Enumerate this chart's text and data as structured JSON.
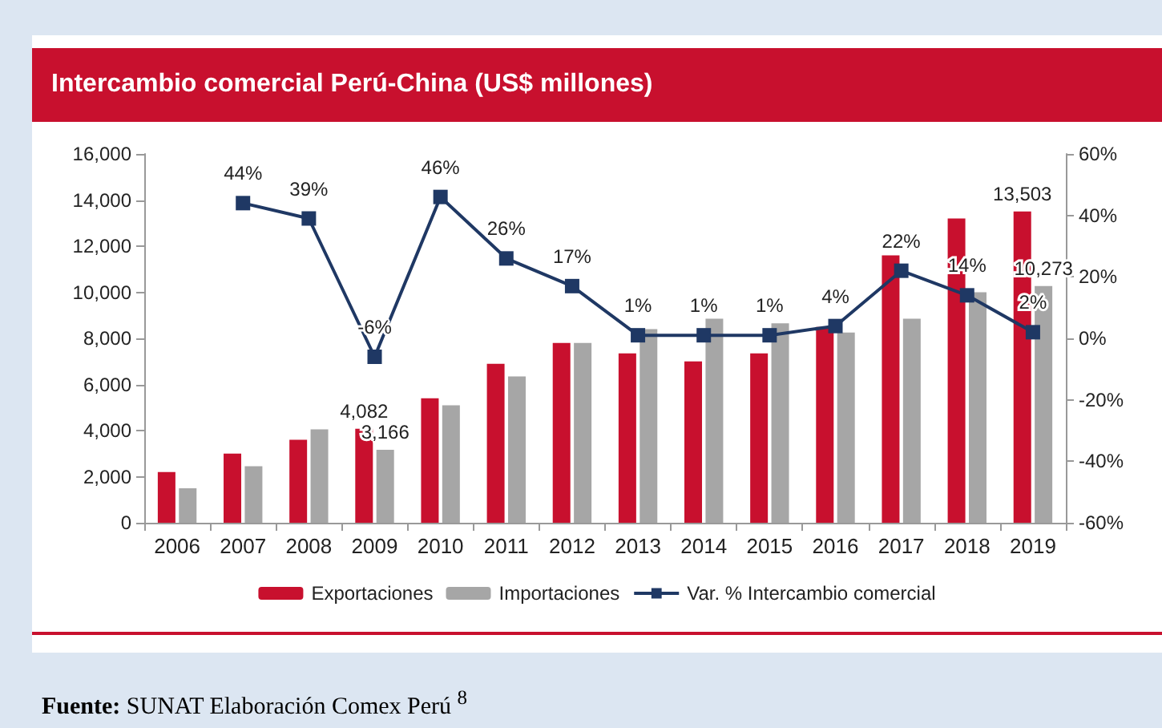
{
  "chart_data": {
    "type": "bar",
    "title": "Intercambio comercial Perú-China (US$ millones)",
    "categories": [
      "2006",
      "2007",
      "2008",
      "2009",
      "2010",
      "2011",
      "2012",
      "2013",
      "2014",
      "2015",
      "2016",
      "2017",
      "2018",
      "2019"
    ],
    "series": [
      {
        "name": "Exportaciones",
        "color": "#c8102e",
        "values": [
          2200,
          3000,
          3600,
          4082,
          5400,
          6900,
          7800,
          7350,
          7000,
          7350,
          8500,
          11600,
          13200,
          13503
        ],
        "value_labels": [
          null,
          null,
          null,
          "4,082",
          null,
          null,
          null,
          null,
          null,
          null,
          null,
          null,
          null,
          "13,503"
        ]
      },
      {
        "name": "Importaciones",
        "color": "#a6a6a6",
        "values": [
          1500,
          2450,
          4050,
          3166,
          5100,
          6350,
          7800,
          8400,
          8850,
          8650,
          8250,
          8850,
          10000,
          10273
        ],
        "value_labels": [
          null,
          null,
          null,
          "3,166",
          null,
          null,
          null,
          null,
          null,
          null,
          null,
          null,
          null,
          "10,273"
        ]
      },
      {
        "name": "Var. % Intercambio comercial",
        "type": "line",
        "axis": "y2",
        "color": "#1f3864",
        "marker": "square",
        "values": [
          null,
          44,
          39,
          -6,
          46,
          26,
          17,
          1,
          1,
          1,
          4,
          22,
          14,
          2
        ],
        "value_labels": [
          null,
          "44%",
          "39%",
          "-6%",
          "46%",
          "26%",
          "17%",
          "1%",
          "1%",
          "1%",
          "4%",
          "22%",
          "14%",
          "2%"
        ]
      }
    ],
    "ylim": [
      0,
      16000
    ],
    "yticks": [
      {
        "value": 0,
        "label": "0"
      },
      {
        "value": 2000,
        "label": "2,000"
      },
      {
        "value": 4000,
        "label": "4,000"
      },
      {
        "value": 6000,
        "label": "6,000"
      },
      {
        "value": 8000,
        "label": "8,000"
      },
      {
        "value": 10000,
        "label": "10,000"
      },
      {
        "value": 12000,
        "label": "12,000"
      },
      {
        "value": 14000,
        "label": "14,000"
      },
      {
        "value": 16000,
        "label": "16,000"
      }
    ],
    "y2lim": [
      -60,
      60
    ],
    "y2ticks": [
      {
        "value": -60,
        "label": "-60%"
      },
      {
        "value": -40,
        "label": "-40%"
      },
      {
        "value": -20,
        "label": "-20%"
      },
      {
        "value": 0,
        "label": "0%"
      },
      {
        "value": 20,
        "label": "20%"
      },
      {
        "value": 40,
        "label": "40%"
      },
      {
        "value": 60,
        "label": "60%"
      }
    ],
    "grid": false,
    "legend": "bottom",
    "annotations": [
      "**Fuente:** SUNAT Elaboración Comex Perú $^{8}$"
    ]
  }
}
